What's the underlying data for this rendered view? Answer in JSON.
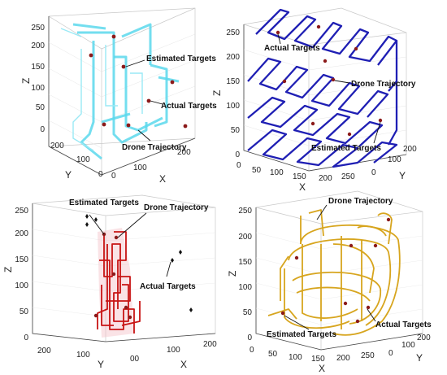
{
  "chart_data": [
    {
      "type": "line",
      "panel": "top-left",
      "xlabel": "X",
      "ylabel": "Y",
      "zlabel": "Z",
      "z_ticks": [
        "0",
        "50",
        "100",
        "150",
        "200",
        "250"
      ],
      "x_ticks": [
        "0",
        "100",
        "200"
      ],
      "y_ticks": [
        "200",
        "100",
        "0"
      ],
      "annotations": [
        "Estimated Targets",
        "Actual Targets",
        "Drone Trajectory"
      ],
      "trajectory_color": "#5ad8ec",
      "target_color": "#8b1a1a"
    },
    {
      "type": "line",
      "panel": "top-right",
      "xlabel": "X",
      "ylabel": "Y",
      "zlabel": "Z",
      "z_ticks": [
        "0",
        "50",
        "100",
        "150",
        "200",
        "250"
      ],
      "x_ticks": [
        "0",
        "50",
        "100",
        "150",
        "200",
        "250"
      ],
      "y_ticks": [
        "0",
        "100",
        "200"
      ],
      "annotations": [
        "Actual Targets",
        "Drone Trajectory",
        "Estimated Targets"
      ],
      "trajectory_color": "#1f1fb4",
      "target_color": "#8b1a1a"
    },
    {
      "type": "line",
      "panel": "bottom-left",
      "xlabel": "X",
      "ylabel": "Y",
      "zlabel": "Z",
      "z_ticks": [
        "0",
        "50",
        "100",
        "150",
        "200",
        "250"
      ],
      "x_ticks": [
        "00",
        "100",
        "200"
      ],
      "y_ticks": [
        "200",
        "100"
      ],
      "annotations": [
        "Estimated Targets",
        "Drone Trajectory",
        "Actual Targets"
      ],
      "trajectory_color": "#c81414",
      "target_color": "#111111"
    },
    {
      "type": "line",
      "panel": "bottom-right",
      "xlabel": "X",
      "ylabel": "Y",
      "zlabel": "Z",
      "z_ticks": [
        "0",
        "50",
        "100",
        "150",
        "200",
        "250"
      ],
      "x_ticks": [
        "0",
        "50",
        "100",
        "150",
        "200",
        "250"
      ],
      "y_ticks": [
        "0",
        "100",
        "200"
      ],
      "annotations": [
        "Drone Trajectory",
        "Actual Targets",
        "Estimated Targets"
      ],
      "trajectory_color": "#d7a51e",
      "target_color": "#8b1a1a"
    }
  ]
}
